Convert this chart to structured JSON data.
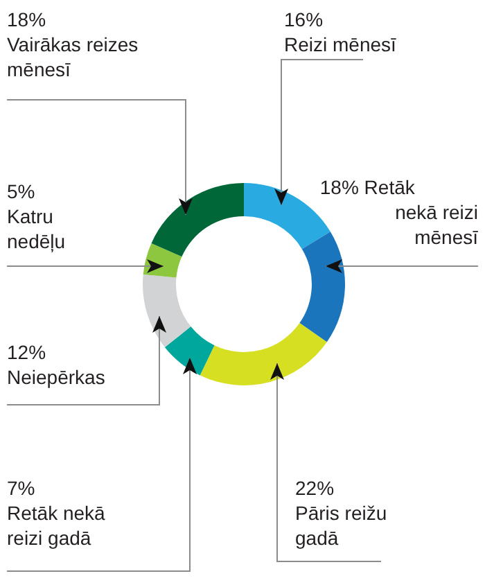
{
  "chart_data": {
    "type": "donut",
    "categories": [
      "Reizi mēnesī",
      "Retāk nekā reizi mēnesī",
      "Pāris reižu gadā",
      "Retāk nekā reizi gadā",
      "Neiepērkas",
      "Katru nedēļu",
      "Vairākas reizes mēnesī"
    ],
    "values": [
      16,
      18,
      22,
      7,
      12,
      5,
      18
    ],
    "value_labels": [
      "16%",
      "18%",
      "22%",
      "7%",
      "12%",
      "5%",
      "18%"
    ],
    "colors": [
      "#29abe2",
      "#1b75bc",
      "#d7df23",
      "#00a79d",
      "#d1d3d4",
      "#8dc63f",
      "#006838"
    ]
  }
}
